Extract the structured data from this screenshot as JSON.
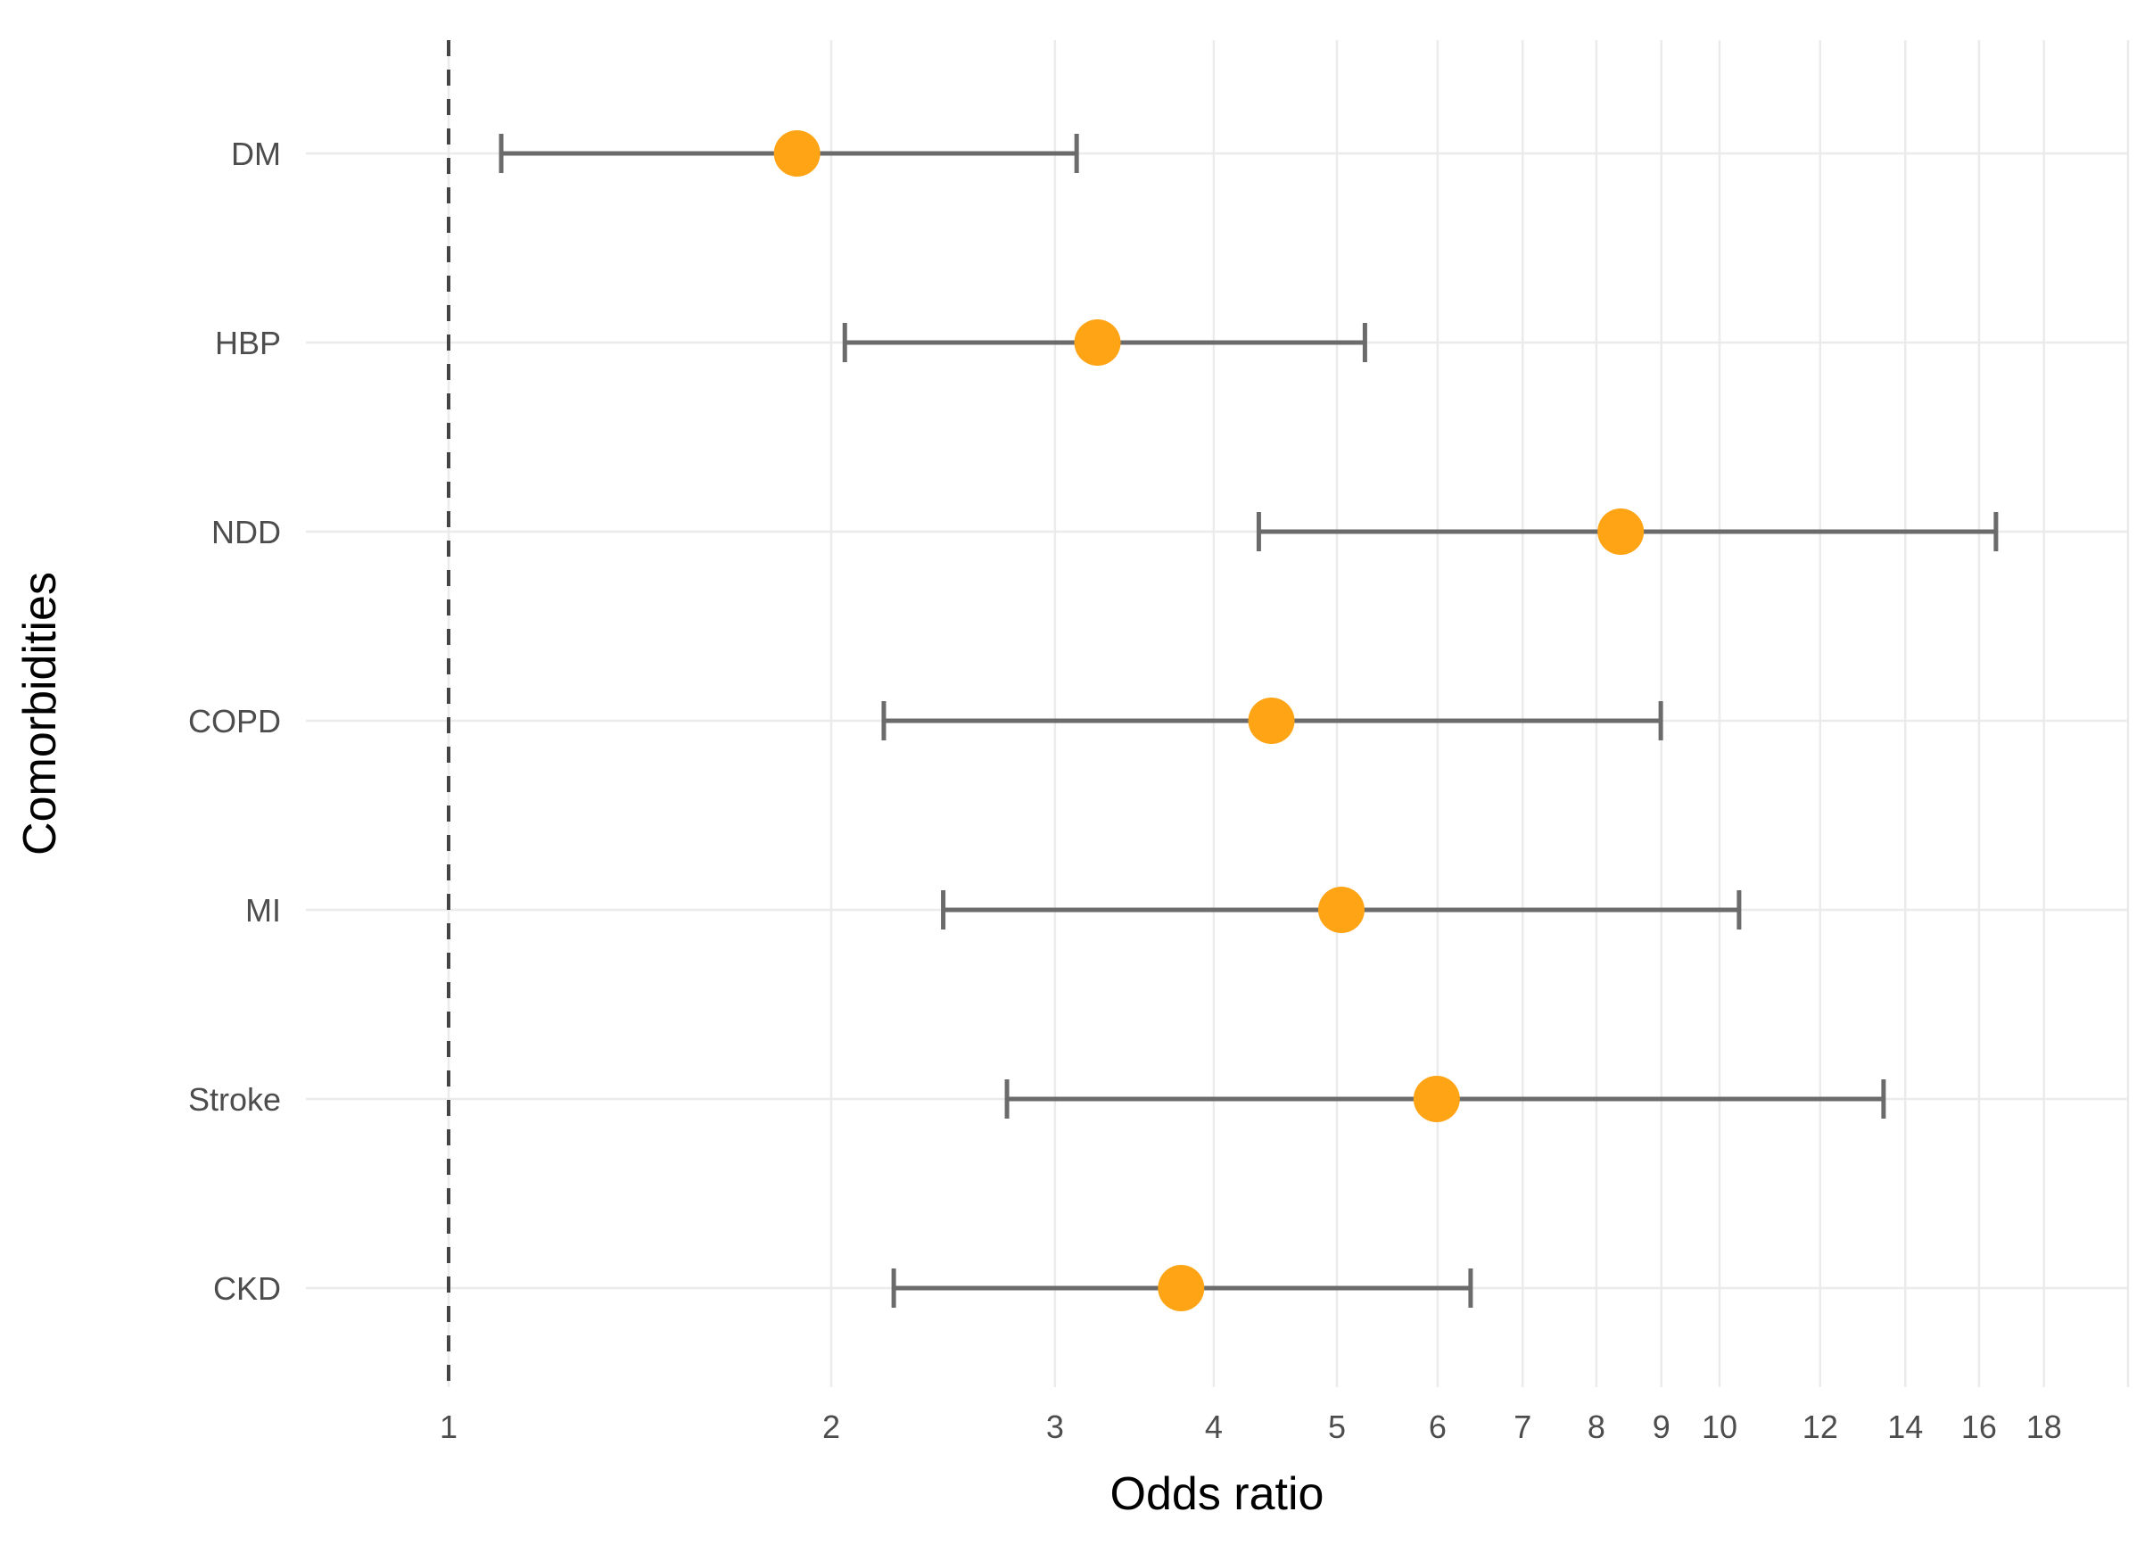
{
  "chart_data": {
    "type": "scatter",
    "subtype": "forest-plot",
    "title": "",
    "xlabel": "Odds ratio",
    "ylabel": "Comorbidities",
    "x_scale": "log",
    "x_ticks": [
      1,
      2,
      3,
      4,
      5,
      6,
      7,
      8,
      9,
      10,
      12,
      14,
      16,
      18
    ],
    "x_range": [
      0.85,
      21
    ],
    "grid": true,
    "legend": "none",
    "reference_line_x": 1,
    "reference_line_style": "dashed",
    "categories": [
      "DM",
      "HBP",
      "NDD",
      "COPD",
      "MI",
      "Stroke",
      "CKD"
    ],
    "points": [
      {
        "category": "DM",
        "or": 1.88,
        "ci_low": 1.1,
        "ci_high": 3.12
      },
      {
        "category": "HBP",
        "or": 3.24,
        "ci_low": 2.05,
        "ci_high": 5.26
      },
      {
        "category": "NDD",
        "or": 8.36,
        "ci_low": 4.34,
        "ci_high": 16.5
      },
      {
        "category": "COPD",
        "or": 4.44,
        "ci_low": 2.2,
        "ci_high": 8.99
      },
      {
        "category": "MI",
        "or": 5.04,
        "ci_low": 2.45,
        "ci_high": 10.36
      },
      {
        "category": "Stroke",
        "or": 5.99,
        "ci_low": 2.75,
        "ci_high": 13.46
      },
      {
        "category": "CKD",
        "or": 3.77,
        "ci_low": 2.24,
        "ci_high": 6.37
      }
    ]
  },
  "colors": {
    "background": "#ffffff",
    "point": "#ffa414",
    "error_bar": "#6b6b6b",
    "grid_line": "#ebebeb",
    "reference_line": "#444444",
    "tick_label": "#4d4d4d",
    "axis_title": "#000000"
  }
}
